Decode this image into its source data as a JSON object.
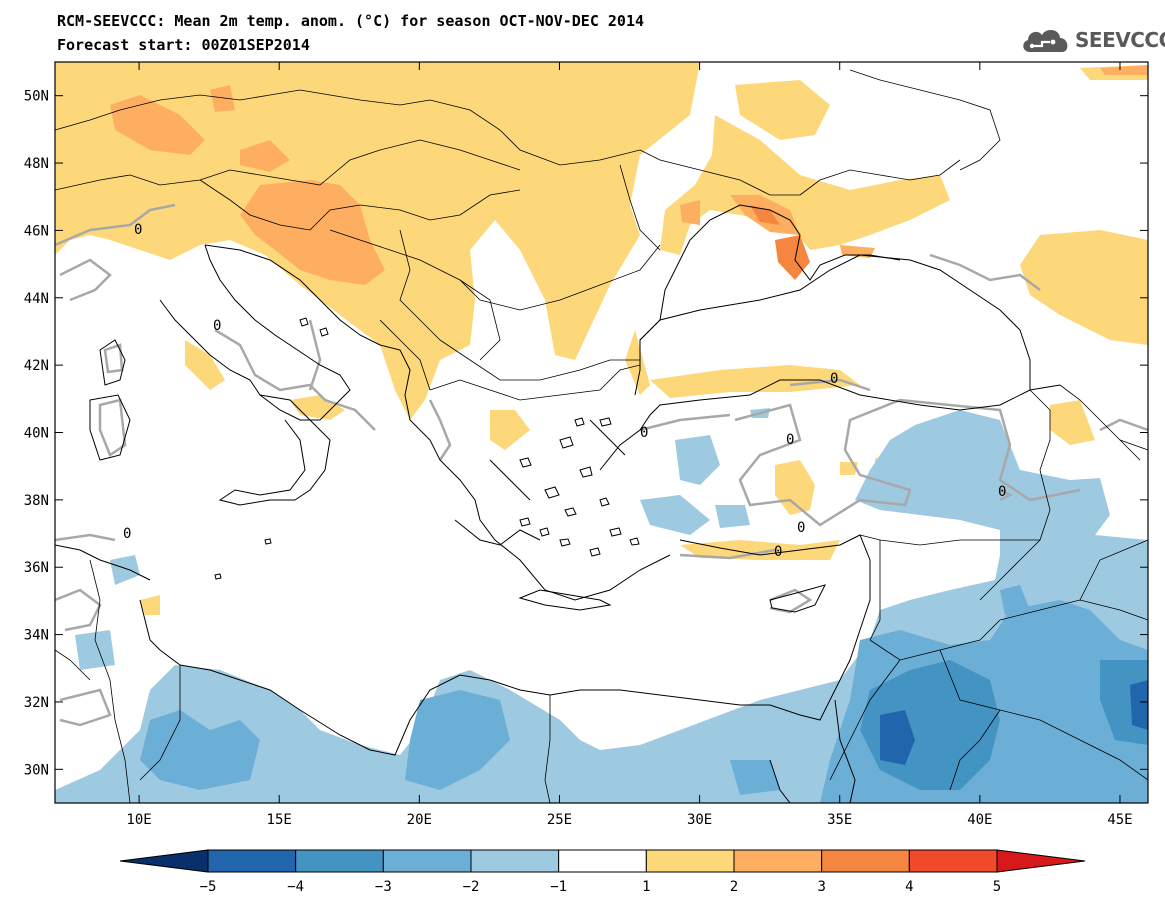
{
  "title_line1": "RCM-SEEVCCC: Mean 2m temp. anom. (°C) for season OCT-NOV-DEC 2014",
  "title_line2": "Forecast start: 00Z01SEP2014",
  "logo_text": "SEEVCCC",
  "map": {
    "lon_labels": [
      "10E",
      "15E",
      "20E",
      "25E",
      "30E",
      "35E",
      "40E",
      "45E"
    ],
    "lon_values": [
      10,
      15,
      20,
      25,
      30,
      35,
      40,
      45
    ],
    "lat_labels": [
      "50N",
      "48N",
      "46N",
      "44N",
      "42N",
      "40N",
      "38N",
      "36N",
      "34N",
      "32N",
      "30N"
    ],
    "lat_values": [
      50,
      48,
      46,
      44,
      42,
      40,
      38,
      36,
      34,
      32,
      30
    ],
    "lon_range": [
      7,
      46
    ],
    "lat_range": [
      29,
      51
    ],
    "contour_label": "0"
  },
  "colorbar": {
    "tick_labels": [
      "−5",
      "−4",
      "−3",
      "−2",
      "−1",
      "1",
      "2",
      "3",
      "4",
      "5"
    ],
    "colors": [
      "#08306b",
      "#2166ac",
      "#4393c3",
      "#6baed6",
      "#9ecae1",
      "#ffffff",
      "#fdd87a",
      "#fdae61",
      "#f58640",
      "#f04a2a",
      "#d7191c"
    ],
    "colors_note_keys": [
      "below -5",
      "-5..-4",
      "-4..-3",
      "-3..-2",
      "-2..-1",
      "-1..1",
      "1..2",
      "2..3",
      "3..4",
      "4..5",
      "above 5"
    ]
  },
  "colors": {
    "warm1": "#fdd87a",
    "warm2": "#fdae61",
    "warm3": "#f58640",
    "warm4": "#f04a2a",
    "cool1": "#9ecae1",
    "cool2": "#6baed6",
    "cool3": "#4393c3",
    "cool4": "#2166ac",
    "zero_contour": "#a8a8a8",
    "coast": "#000000"
  }
}
